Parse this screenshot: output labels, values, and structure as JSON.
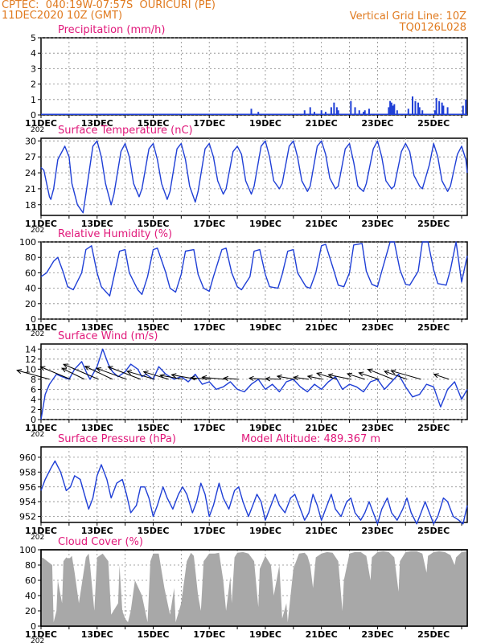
{
  "header": {
    "line1": "CPTEC:  040:19W-07:57S  OURICURI (PE)",
    "line2": "11DEC2020 10Z (GMT)",
    "right1": "Vertical Grid Line: 10Z",
    "right2": "TQ0126L028"
  },
  "colors": {
    "header": "#e07a1f",
    "title": "#e0187a",
    "series": "#1f3fd6",
    "wind_arrow": "#000000",
    "cloud": "#a8a8a8"
  },
  "x_axis": {
    "labels": [
      "11DEC",
      "13DEC",
      "15DEC",
      "17DEC",
      "19DEC",
      "21DEC",
      "23DEC",
      "25DEC"
    ],
    "label_days": [
      0,
      2,
      4,
      6,
      8,
      10,
      12,
      14
    ],
    "range_days": [
      0,
      15.2
    ],
    "year_fragment": "202"
  },
  "chart_data": [
    {
      "id": "precip",
      "type": "bar",
      "title": "Precipitation (mm/h)",
      "ylim": [
        0,
        5
      ],
      "yticks": [
        0,
        1,
        2,
        3,
        4,
        5
      ],
      "x": [
        7.5,
        7.75,
        9.4,
        9.6,
        9.75,
        10.0,
        10.15,
        10.35,
        10.45,
        10.55,
        10.6,
        11.05,
        11.2,
        11.35,
        11.5,
        11.55,
        11.7,
        12.4,
        12.45,
        12.5,
        12.55,
        12.6,
        12.7,
        13.1,
        13.25,
        13.35,
        13.45,
        13.5,
        13.6,
        14.05,
        14.1,
        14.2,
        14.3,
        14.35,
        14.5,
        15.05,
        15.15
      ],
      "values": [
        0.4,
        0.2,
        0.3,
        0.5,
        0.2,
        0.3,
        0.2,
        0.5,
        0.8,
        0.5,
        0.3,
        0.9,
        0.5,
        0.3,
        0.2,
        0.3,
        0.4,
        0.5,
        0.9,
        0.8,
        0.6,
        0.7,
        0.3,
        0.4,
        1.2,
        0.9,
        0.8,
        0.5,
        0.3,
        0.3,
        1.1,
        0.9,
        0.8,
        0.6,
        0.5,
        0.6,
        1.0
      ]
    },
    {
      "id": "temp",
      "type": "line",
      "title": "Surface Temperature (nC)",
      "ylim": [
        16,
        30.5
      ],
      "yticks": [
        18,
        21,
        24,
        27,
        30
      ],
      "x": [
        0,
        0.1,
        0.2,
        0.3,
        0.35,
        0.45,
        0.6,
        0.85,
        1.0,
        1.1,
        1.3,
        1.5,
        1.6,
        1.85,
        2.0,
        2.15,
        2.3,
        2.5,
        2.6,
        2.85,
        3.0,
        3.15,
        3.3,
        3.5,
        3.6,
        3.85,
        4.0,
        4.15,
        4.3,
        4.5,
        4.6,
        4.85,
        5.0,
        5.15,
        5.3,
        5.5,
        5.6,
        5.85,
        6.0,
        6.15,
        6.3,
        6.5,
        6.6,
        6.85,
        7.0,
        7.15,
        7.3,
        7.5,
        7.6,
        7.85,
        8.0,
        8.15,
        8.3,
        8.5,
        8.6,
        8.85,
        9.0,
        9.15,
        9.3,
        9.5,
        9.6,
        9.85,
        10.0,
        10.15,
        10.3,
        10.5,
        10.6,
        10.85,
        11.0,
        11.15,
        11.3,
        11.5,
        11.6,
        11.85,
        12.0,
        12.15,
        12.3,
        12.5,
        12.6,
        12.85,
        13.0,
        13.15,
        13.3,
        13.5,
        13.6,
        13.85,
        14.0,
        14.15,
        14.3,
        14.5,
        14.6,
        14.85,
        15.0,
        15.15,
        15.2
      ],
      "values": [
        25,
        24.5,
        22,
        19.5,
        19,
        21,
        26.5,
        29,
        27,
        22,
        18,
        16.5,
        20,
        29,
        30,
        27,
        22,
        18,
        20,
        28,
        29.5,
        27,
        22,
        19.5,
        21,
        28.5,
        29.5,
        26.5,
        22,
        19,
        20.5,
        28.5,
        29.5,
        26.5,
        21.5,
        18.5,
        20.5,
        28.5,
        29.5,
        27,
        22.5,
        20,
        21,
        28,
        29,
        27.5,
        22.5,
        20,
        21.5,
        29,
        30,
        27,
        22.5,
        21,
        22,
        29,
        30,
        27,
        22.5,
        20.5,
        21.5,
        29,
        30,
        27.5,
        23,
        21,
        21.5,
        28.5,
        29.5,
        26,
        21.5,
        20.5,
        22,
        28.5,
        30,
        27,
        22.5,
        21,
        21.5,
        28,
        29.5,
        28,
        23.5,
        21.5,
        21,
        25.5,
        29.5,
        27,
        22.5,
        20.5,
        21.5,
        27.5,
        29,
        26.5,
        24
      ]
    },
    {
      "id": "rh",
      "type": "line",
      "title": "Relative Humidity (%)",
      "ylim": [
        0,
        100
      ],
      "yticks": [
        0,
        20,
        40,
        60,
        80,
        100
      ],
      "x": [
        0,
        0.2,
        0.45,
        0.6,
        0.8,
        0.95,
        1.15,
        1.45,
        1.6,
        1.8,
        2.0,
        2.15,
        2.45,
        2.6,
        2.8,
        3.0,
        3.15,
        3.45,
        3.6,
        3.8,
        4.0,
        4.15,
        4.45,
        4.6,
        4.8,
        5.0,
        5.15,
        5.45,
        5.6,
        5.8,
        6.0,
        6.15,
        6.45,
        6.6,
        6.8,
        7.0,
        7.15,
        7.45,
        7.6,
        7.8,
        8.0,
        8.15,
        8.45,
        8.6,
        8.8,
        9.0,
        9.15,
        9.45,
        9.6,
        9.8,
        10.0,
        10.15,
        10.45,
        10.6,
        10.8,
        11.0,
        11.15,
        11.45,
        11.6,
        11.8,
        12.0,
        12.15,
        12.45,
        12.6,
        12.8,
        13.0,
        13.15,
        13.45,
        13.6,
        13.8,
        14.0,
        14.15,
        14.45,
        14.6,
        14.8,
        15.0,
        15.2
      ],
      "values": [
        55,
        60,
        75,
        80,
        60,
        42,
        38,
        60,
        90,
        95,
        60,
        42,
        30,
        55,
        88,
        90,
        60,
        38,
        32,
        55,
        90,
        92,
        60,
        40,
        35,
        58,
        88,
        90,
        58,
        40,
        36,
        55,
        90,
        92,
        60,
        42,
        38,
        55,
        88,
        90,
        58,
        42,
        40,
        58,
        88,
        90,
        60,
        42,
        40,
        60,
        95,
        97,
        62,
        44,
        42,
        60,
        96,
        98,
        62,
        45,
        42,
        62,
        100,
        100,
        64,
        45,
        44,
        62,
        100,
        100,
        64,
        46,
        44,
        64,
        100,
        48,
        82
      ]
    },
    {
      "id": "wind",
      "type": "line",
      "title": "Surface Wind (m/s)",
      "ylim": [
        0,
        15
      ],
      "yticks": [
        0,
        2,
        4,
        6,
        8,
        10,
        12,
        14
      ],
      "x": [
        0,
        0.15,
        0.3,
        0.55,
        0.75,
        1.0,
        1.2,
        1.45,
        1.65,
        1.75,
        2.0,
        2.2,
        2.4,
        2.55,
        2.75,
        3.0,
        3.2,
        3.45,
        3.6,
        3.75,
        4.0,
        4.2,
        4.45,
        4.6,
        4.75,
        5.0,
        5.25,
        5.5,
        5.75,
        6.0,
        6.25,
        6.5,
        6.75,
        7.0,
        7.25,
        7.5,
        7.75,
        8.0,
        8.25,
        8.5,
        8.75,
        9.0,
        9.25,
        9.5,
        9.75,
        10.0,
        10.25,
        10.5,
        10.75,
        11.0,
        11.25,
        11.5,
        11.75,
        12.0,
        12.25,
        12.5,
        12.75,
        13.0,
        13.25,
        13.5,
        13.75,
        14.0,
        14.25,
        14.5,
        14.75,
        15.0,
        15.2
      ],
      "values": [
        0,
        5,
        7,
        9,
        8.5,
        8,
        10,
        11.5,
        9,
        8,
        10.5,
        14,
        11,
        9.5,
        8.5,
        9.5,
        11,
        10,
        8.5,
        9,
        8,
        10.5,
        9,
        8.5,
        8,
        8.5,
        7.5,
        9,
        7,
        7.5,
        6,
        6.5,
        7.5,
        6,
        5.5,
        7,
        8,
        6,
        7,
        5.5,
        7.5,
        8,
        6.5,
        5.5,
        7,
        6,
        7.5,
        8.5,
        6,
        7,
        6.5,
        5.5,
        7.5,
        8,
        6,
        7.5,
        9,
        6.5,
        4.5,
        5,
        7,
        6.5,
        2.5,
        6,
        7.5,
        4,
        6
      ]
    },
    {
      "id": "pres",
      "type": "line",
      "title": "Surface Pressure (hPa)",
      "annotation": "Model Altitude: 489.367 m",
      "ylim": [
        951.2,
        961.4
      ],
      "yticks": [
        952,
        954,
        956,
        958,
        960
      ],
      "x": [
        0,
        0.15,
        0.35,
        0.5,
        0.7,
        0.9,
        1.05,
        1.2,
        1.4,
        1.55,
        1.7,
        1.85,
        2.0,
        2.15,
        2.35,
        2.5,
        2.7,
        2.9,
        3.05,
        3.2,
        3.4,
        3.55,
        3.7,
        3.85,
        4.0,
        4.15,
        4.35,
        4.5,
        4.7,
        4.9,
        5.05,
        5.2,
        5.4,
        5.55,
        5.7,
        5.85,
        6.0,
        6.15,
        6.35,
        6.5,
        6.7,
        6.9,
        7.05,
        7.2,
        7.4,
        7.55,
        7.7,
        7.85,
        8.0,
        8.15,
        8.35,
        8.5,
        8.7,
        8.9,
        9.05,
        9.2,
        9.4,
        9.55,
        9.7,
        9.85,
        10.0,
        10.15,
        10.35,
        10.5,
        10.7,
        10.9,
        11.05,
        11.2,
        11.4,
        11.55,
        11.7,
        11.85,
        12.0,
        12.15,
        12.35,
        12.5,
        12.7,
        12.9,
        13.05,
        13.2,
        13.4,
        13.55,
        13.7,
        13.85,
        14.0,
        14.15,
        14.35,
        14.5,
        14.7,
        14.9,
        15.05,
        15.2
      ],
      "values": [
        955.5,
        957,
        958.5,
        959.5,
        958,
        955.5,
        956,
        957.5,
        957,
        955,
        953,
        954.5,
        957.5,
        959,
        957,
        954.5,
        956.5,
        957,
        955,
        952.5,
        953.5,
        956,
        956,
        954.5,
        952,
        953.5,
        956,
        954.5,
        953,
        955,
        956,
        955,
        952.5,
        954,
        956.5,
        955,
        952,
        953.5,
        956.5,
        954.5,
        953,
        955.5,
        956,
        954,
        952,
        953.5,
        955,
        954,
        951.5,
        953,
        955,
        953.5,
        952.5,
        954.5,
        955,
        953.5,
        951.5,
        952.5,
        955,
        953.5,
        951.5,
        953,
        955,
        953,
        952,
        954,
        954.5,
        952.5,
        951.5,
        952.5,
        954,
        952.5,
        951,
        953,
        954.5,
        952.5,
        951.5,
        953,
        954.5,
        952.5,
        951,
        952.5,
        954,
        952.5,
        951,
        952,
        954.5,
        954,
        952,
        951.5,
        951,
        953.5
      ]
    },
    {
      "id": "cloud",
      "type": "area",
      "title": "Cloud Cover (%)",
      "ylim": [
        0,
        100
      ],
      "yticks": [
        0,
        20,
        40,
        60,
        80,
        100
      ],
      "x": [
        0,
        0.05,
        0.4,
        0.45,
        0.55,
        0.6,
        0.75,
        0.8,
        0.9,
        1.0,
        1.1,
        1.2,
        1.35,
        1.6,
        1.7,
        1.75,
        1.9,
        2.0,
        2.2,
        2.4,
        2.5,
        2.75,
        2.8,
        2.9,
        3.0,
        3.1,
        3.2,
        3.35,
        3.6,
        3.8,
        3.9,
        4.0,
        4.2,
        4.4,
        4.6,
        4.75,
        4.8,
        5.0,
        5.2,
        5.35,
        5.45,
        5.6,
        5.7,
        5.8,
        6.0,
        6.2,
        6.35,
        6.5,
        6.6,
        6.75,
        6.8,
        6.9,
        7.0,
        7.2,
        7.4,
        7.6,
        7.75,
        7.8,
        8.0,
        8.2,
        8.3,
        8.5,
        8.6,
        8.75,
        8.8,
        9.0,
        9.2,
        9.4,
        9.5,
        9.6,
        9.7,
        9.8,
        10.0,
        10.2,
        10.4,
        10.6,
        10.75,
        10.8,
        11.0,
        11.2,
        11.4,
        11.6,
        11.75,
        11.8,
        12.0,
        12.2,
        12.4,
        12.6,
        12.75,
        12.8,
        13.0,
        13.2,
        13.4,
        13.6,
        13.75,
        13.8,
        14.0,
        14.2,
        14.4,
        14.6,
        14.75,
        14.8,
        15.0,
        15.2
      ],
      "values": [
        88,
        90,
        80,
        5,
        20,
        60,
        30,
        85,
        90,
        88,
        92,
        70,
        30,
        90,
        95,
        80,
        20,
        90,
        95,
        85,
        15,
        30,
        80,
        20,
        10,
        5,
        20,
        60,
        40,
        5,
        85,
        95,
        95,
        50,
        15,
        50,
        5,
        30,
        85,
        96,
        92,
        40,
        20,
        85,
        95,
        95,
        96,
        60,
        20,
        65,
        30,
        90,
        96,
        97,
        95,
        85,
        25,
        75,
        92,
        80,
        40,
        80,
        10,
        30,
        5,
        75,
        95,
        96,
        92,
        80,
        50,
        90,
        95,
        97,
        96,
        85,
        20,
        60,
        95,
        97,
        97,
        92,
        60,
        90,
        97,
        98,
        97,
        90,
        45,
        85,
        97,
        98,
        98,
        95,
        70,
        92,
        97,
        98,
        97,
        93,
        80,
        90,
        97,
        98
      ]
    }
  ],
  "wind_vectors": {
    "x": [
      0.3,
      1.05,
      1.55,
      2.05,
      2.55,
      3.05,
      3.55,
      4.05,
      4.55,
      5.05,
      5.55,
      6.05,
      6.55,
      7.05,
      8.05,
      8.55,
      9.05,
      9.55,
      10.05,
      10.55,
      11.05,
      11.55,
      12.05,
      12.55,
      13.05,
      13.55,
      14.55
    ],
    "u": [
      -6.5,
      -6,
      -4.5,
      -7,
      -5.5,
      -6,
      -6.5,
      -5.5,
      -5,
      -4.5,
      -5,
      -4,
      -4.5,
      -3,
      -3.5,
      -3,
      -3.5,
      -3,
      -3,
      -4,
      -4.5,
      -3.5,
      -4,
      -5,
      -4.5,
      -6,
      -3
    ],
    "v": [
      1.8,
      2.5,
      2.2,
      3,
      2.6,
      2.2,
      2.5,
      1.6,
      1.5,
      0.8,
      0.9,
      0.3,
      0.4,
      0.2,
      0.2,
      0.1,
      0.6,
      0.4,
      0.6,
      1.2,
      0.9,
      1.1,
      1.3,
      2.0,
      1.6,
      1.7,
      1.0
    ]
  }
}
